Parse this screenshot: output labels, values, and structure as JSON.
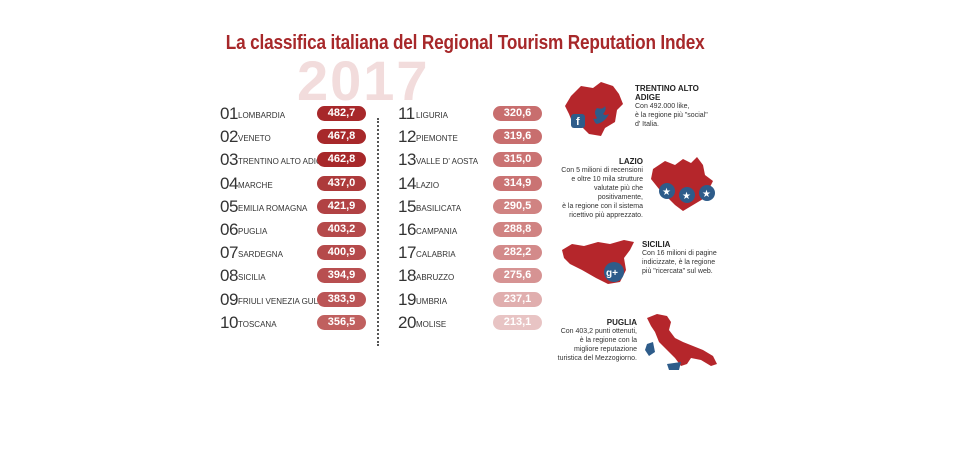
{
  "title": "La classifica italiana del Regional Tourism Reputation Index",
  "year": "2017",
  "chart_data": {
    "type": "table",
    "columns": [
      [
        {
          "rank": "01",
          "region": "LOMBARDIA",
          "value": "482,7",
          "color": "#a7282a"
        },
        {
          "rank": "02",
          "region": "VENETO",
          "value": "467,8",
          "color": "#a7282a"
        },
        {
          "rank": "03",
          "region": "TRENTINO ALTO ADIGE",
          "value": "462,8",
          "color": "#a7282a"
        },
        {
          "rank": "04",
          "region": "MARCHE",
          "value": "437,0",
          "color": "#ad3a3b"
        },
        {
          "rank": "05",
          "region": "EMILIA ROMAGNA",
          "value": "421,9",
          "color": "#b14244"
        },
        {
          "rank": "06",
          "region": "PUGLIA",
          "value": "403,2",
          "color": "#b54a4b"
        },
        {
          "rank": "07",
          "region": "SARDEGNA",
          "value": "400,9",
          "color": "#b54a4b"
        },
        {
          "rank": "08",
          "region": "SICILIA",
          "value": "394,9",
          "color": "#b84f50"
        },
        {
          "rank": "09",
          "region": "FRIULI VENEZIA GULIA",
          "value": "383,9",
          "color": "#bb5556"
        },
        {
          "rank": "10",
          "region": "TOSCANA",
          "value": "356,5",
          "color": "#c0605f"
        }
      ],
      [
        {
          "rank": "11",
          "region": "LIGURIA",
          "value": "320,6",
          "color": "#c86e6e"
        },
        {
          "rank": "12",
          "region": "PIEMONTE",
          "value": "319,6",
          "color": "#c86e6e"
        },
        {
          "rank": "13",
          "region": "VALLE D' AOSTA",
          "value": "315,0",
          "color": "#ca7373"
        },
        {
          "rank": "14",
          "region": "LAZIO",
          "value": "314,9",
          "color": "#ca7373"
        },
        {
          "rank": "15",
          "region": "BASILICATA",
          "value": "290,5",
          "color": "#d08382"
        },
        {
          "rank": "16",
          "region": "CAMPANIA",
          "value": "288,8",
          "color": "#d08382"
        },
        {
          "rank": "17",
          "region": "CALABRIA",
          "value": "282,2",
          "color": "#d38a8a"
        },
        {
          "rank": "18",
          "region": "ABRUZZO",
          "value": "275,6",
          "color": "#d69393"
        },
        {
          "rank": "19",
          "region": "UMBRIA",
          "value": "237,1",
          "color": "#e0aeae"
        },
        {
          "rank": "20",
          "region": "MOLISE",
          "value": "213,1",
          "color": "#e8c4c4"
        }
      ]
    ]
  },
  "panels": [
    {
      "title": "TRENTINO ALTO ADIGE",
      "lines": [
        "Con 492.000 like,",
        "è la regione più \"social\"",
        "d' Italia."
      ],
      "icon": "social-icons"
    },
    {
      "title": "LAZIO",
      "lines": [
        "Con 5 milioni di recensioni",
        "e oltre 10 mila strutture",
        "valutate più che positivamente,",
        "è la regione con il sistema",
        "ricettivo più apprezzato."
      ],
      "icon": "stars"
    },
    {
      "title": "SICILIA",
      "lines": [
        "Con 16 milioni di pagine",
        "indicizzate, è la regione",
        "più \"ricercata\" sul web."
      ],
      "icon": "google-plus"
    },
    {
      "title": "PUGLIA",
      "lines": [
        "Con 403,2 punti ottenuti,",
        "è la regione con la",
        "migliore reputazione",
        "turistica del Mezzogiorno."
      ],
      "icon": "italy-map"
    }
  ],
  "colors": {
    "accent": "#a7282a",
    "year_watermark": "#f2dcdc",
    "map_red": "#b5262b",
    "icon_blue": "#2e5c8a"
  }
}
